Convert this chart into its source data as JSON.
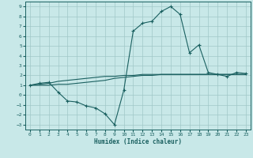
{
  "xlabel": "Humidex (Indice chaleur)",
  "bg_color": "#c8e8e8",
  "grid_color": "#a0c8c8",
  "line_color": "#1a6060",
  "xlim": [
    -0.5,
    23.5
  ],
  "ylim": [
    -3.5,
    9.5
  ],
  "xticks": [
    0,
    1,
    2,
    3,
    4,
    5,
    6,
    7,
    8,
    9,
    10,
    11,
    12,
    13,
    14,
    15,
    16,
    17,
    18,
    19,
    20,
    21,
    22,
    23
  ],
  "yticks": [
    -3,
    -2,
    -1,
    0,
    1,
    2,
    3,
    4,
    5,
    6,
    7,
    8,
    9
  ],
  "main_x": [
    0,
    1,
    2,
    3,
    4,
    5,
    6,
    7,
    8,
    9,
    10,
    11,
    12,
    13,
    14,
    15,
    16,
    17,
    18,
    19,
    20,
    21,
    22,
    23
  ],
  "main_y": [
    1,
    1.2,
    1.3,
    0.3,
    -0.6,
    -0.7,
    -1.1,
    -1.3,
    -1.9,
    -3.0,
    0.5,
    6.5,
    7.3,
    7.5,
    8.5,
    9.0,
    8.2,
    4.3,
    5.1,
    2.3,
    2.1,
    1.9,
    2.3,
    2.2
  ],
  "line2_x": [
    0,
    23
  ],
  "line2_y": [
    1.0,
    2.1
  ],
  "line3_x": [
    0,
    23
  ],
  "line3_y": [
    1.0,
    2.1
  ],
  "ref_line_x": [
    0,
    1,
    2,
    3,
    4,
    5,
    6,
    7,
    8,
    9,
    10,
    11,
    12,
    13,
    14,
    15,
    16,
    17,
    18,
    19,
    20,
    21,
    22,
    23
  ],
  "ref_line_y": [
    1.0,
    1.0,
    1.0,
    1.1,
    1.1,
    1.2,
    1.3,
    1.4,
    1.5,
    1.7,
    1.8,
    1.9,
    2.0,
    2.0,
    2.1,
    2.1,
    2.1,
    2.1,
    2.1,
    2.1,
    2.1,
    2.1,
    2.1,
    2.1
  ],
  "ref2_line_x": [
    0,
    1,
    2,
    3,
    4,
    5,
    6,
    7,
    8,
    9,
    10,
    11,
    12,
    13,
    14,
    15,
    16,
    17,
    18,
    19,
    20,
    21,
    22,
    23
  ],
  "ref2_line_y": [
    1.0,
    1.1,
    1.2,
    1.4,
    1.5,
    1.6,
    1.7,
    1.8,
    1.9,
    1.9,
    2.0,
    2.0,
    2.1,
    2.1,
    2.1,
    2.1,
    2.1,
    2.1,
    2.1,
    2.1,
    2.1,
    2.1,
    2.1,
    2.1
  ]
}
